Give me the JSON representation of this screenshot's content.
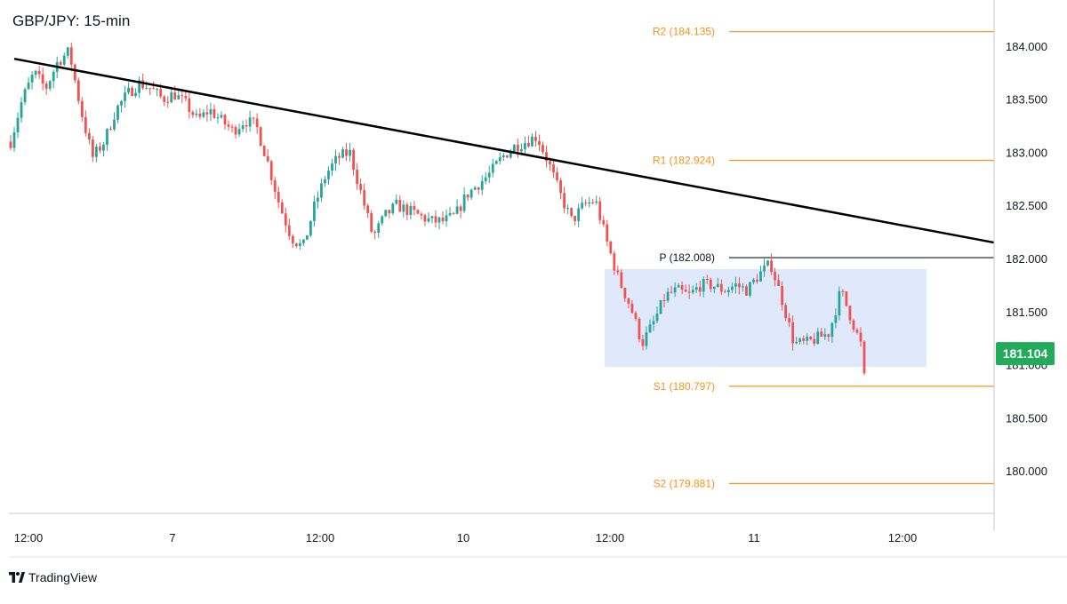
{
  "title": "GBP/JPY: 15-min",
  "brand": "TradingView",
  "colors": {
    "up": "#26a69a",
    "down": "#ef5350",
    "pivot_support_resistance": "#f7931a",
    "pivot_line": "#131722",
    "trendline": "#000000",
    "range_box": "#dbe4fb",
    "last_price_badge": "#22ab5a",
    "axis_text": "#131722"
  },
  "chart_data": {
    "type": "candlestick",
    "symbol": "GBP/JPY",
    "timeframe": "15-min",
    "ylim": [
      179.6,
      184.4
    ],
    "y_ticks": [
      "180.000",
      "180.500",
      "181.000",
      "181.500",
      "182.000",
      "182.500",
      "183.000",
      "183.500",
      "184.000"
    ],
    "x_ticks": [
      "12:00",
      "7",
      "12:00",
      "10",
      "12:00",
      "11",
      "12:00"
    ],
    "last_price": "181.104",
    "levels": [
      {
        "label": "R2 (184.135)",
        "value": 184.135,
        "kind": "resistance"
      },
      {
        "label": "R1 (182.924)",
        "value": 182.924,
        "kind": "resistance"
      },
      {
        "label": "P (182.008)",
        "value": 182.008,
        "kind": "pivot"
      },
      {
        "label": "S1 (180.797)",
        "value": 180.797,
        "kind": "support"
      },
      {
        "label": "S2 (179.881)",
        "value": 179.881,
        "kind": "support"
      }
    ],
    "trendline": {
      "start_price": 183.88,
      "end_price": 182.15
    },
    "range_box": {
      "top": 181.9,
      "bottom": 180.98
    },
    "close_path": [
      183.1,
      183.5,
      183.75,
      183.6,
      183.85,
      183.95,
      183.4,
      182.95,
      183.1,
      183.4,
      183.55,
      183.65,
      183.6,
      183.5,
      183.55,
      183.45,
      183.3,
      183.4,
      183.3,
      183.2,
      183.3,
      183.25,
      182.9,
      182.5,
      182.2,
      182.1,
      182.5,
      182.8,
      182.95,
      183.0,
      182.6,
      182.2,
      182.4,
      182.5,
      182.45,
      182.4,
      182.35,
      182.35,
      182.4,
      182.6,
      182.7,
      182.8,
      182.95,
      183.05,
      183.1,
      183.15,
      182.9,
      182.6,
      182.35,
      182.5,
      182.55,
      182.15,
      181.8,
      181.55,
      181.2,
      181.4,
      181.65,
      181.7,
      181.65,
      181.75,
      181.75,
      181.7,
      181.75,
      181.7,
      181.85,
      181.95,
      181.6,
      181.2,
      181.2,
      181.25,
      181.3,
      181.7,
      181.4,
      181.1
    ]
  }
}
